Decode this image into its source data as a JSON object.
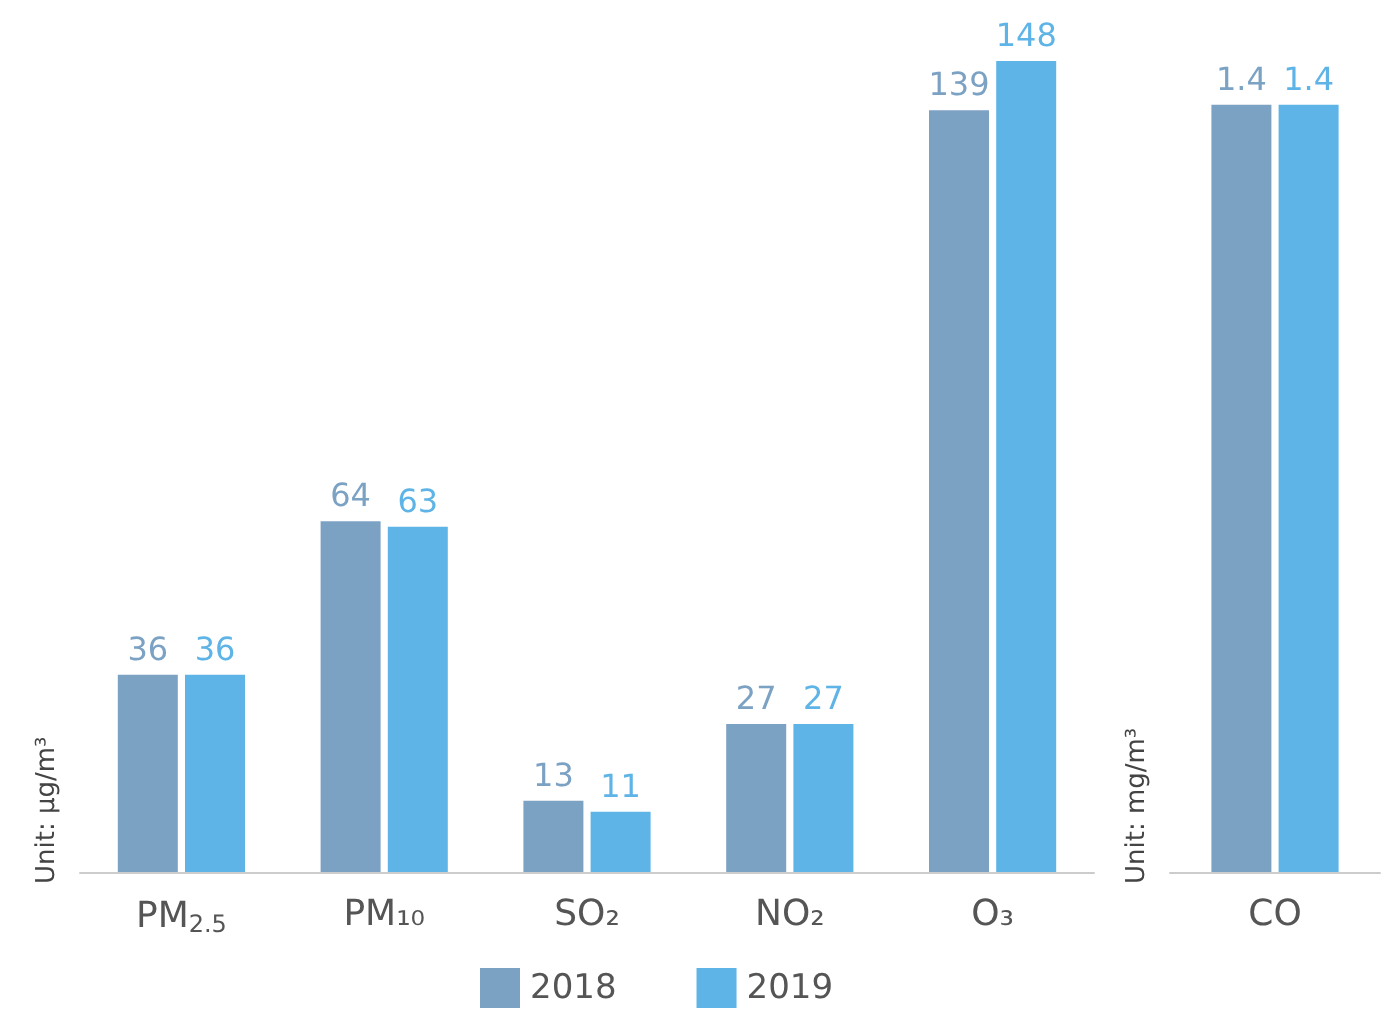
{
  "chart_data": [
    {
      "type": "bar",
      "ylabel": "Unit: μg/m³",
      "categories": [
        "PM$_{2.5}$",
        "PM₁₀",
        "SO₂",
        "NO₂",
        "O₃"
      ],
      "data_labels": true,
      "legend": "bottom",
      "grid": false,
      "series": [
        {
          "name": "2018",
          "color": "#7ba1c3",
          "values": [
            36,
            64,
            13,
            27,
            139
          ]
        },
        {
          "name": "2019",
          "color": "#5eb4e6",
          "values": [
            36,
            63,
            11,
            27,
            148
          ]
        }
      ]
    },
    {
      "type": "bar",
      "ylabel": "Unit: mg/m³",
      "categories": [
        "CO"
      ],
      "data_labels": true,
      "grid": false,
      "series": [
        {
          "color": "#7ba1c3",
          "values": [
            1.4
          ]
        },
        {
          "color": "#5eb4e6",
          "values": [
            1.4
          ]
        }
      ]
    }
  ]
}
